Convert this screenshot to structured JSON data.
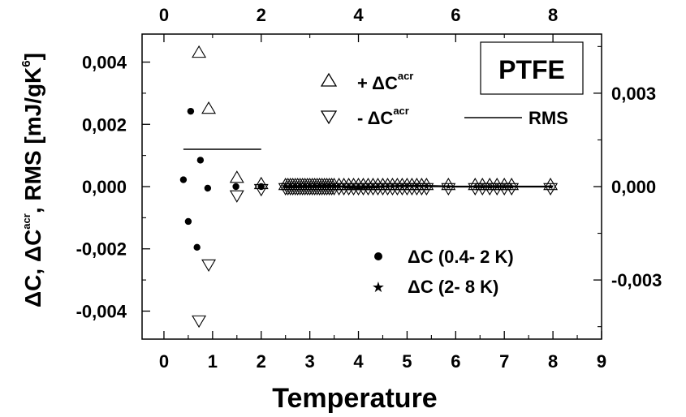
{
  "chart_data": {
    "type": "scatter",
    "xlabel": "Temperature",
    "ylabel_left_parts": [
      "ΔC, ΔC",
      "acr",
      ", RMS [mJ/gK",
      "6",
      "]"
    ],
    "x_bottom": {
      "range": [
        -0.45,
        9
      ],
      "ticks": [
        0,
        1,
        2,
        3,
        4,
        5,
        6,
        7,
        8,
        9
      ],
      "minor_step": 0.5
    },
    "x_top": {
      "range": [
        -0.45,
        9
      ],
      "ticks": [
        0,
        2,
        4,
        6,
        8
      ],
      "tick_labels": [
        "0",
        "2",
        "4",
        "6",
        "8"
      ]
    },
    "y_left": {
      "range": [
        -0.0049,
        0.0049
      ],
      "ticks": [
        -0.004,
        -0.002,
        0,
        0.002,
        0.004
      ],
      "tick_labels": [
        "-0,004",
        "-0,002",
        "0,000",
        "0,002",
        "0,004"
      ],
      "minor_step": 0.001
    },
    "y_right": {
      "ticks": [
        -0.003,
        0,
        0.003
      ],
      "tick_labels": [
        "-0,003",
        "0,000",
        "0,003"
      ],
      "scale_factor": 1.0,
      "minor_step": 0.0015
    },
    "annotation": "PTFE",
    "legend": {
      "plus": {
        "prefix": "+ ΔC",
        "sup": "acr"
      },
      "minus": {
        "prefix": "- ΔC",
        "sup": "acr"
      },
      "rms": "RMS",
      "dc1": "ΔC (0.4- 2 K)",
      "dc2": "ΔC (2- 8 K)"
    },
    "series": [
      {
        "name": "+ ΔC^acr",
        "marker": "triangle-up",
        "points": [
          [
            0.72,
            0.0043
          ],
          [
            0.92,
            0.0025
          ],
          [
            1.5,
            0.00028
          ],
          [
            2.0,
            8e-05
          ],
          [
            2.5,
            5e-05
          ],
          [
            2.55,
            5e-05
          ],
          [
            2.6,
            5e-05
          ],
          [
            2.65,
            5e-05
          ],
          [
            2.7,
            5e-05
          ],
          [
            2.75,
            5e-05
          ],
          [
            2.8,
            5e-05
          ],
          [
            2.85,
            5e-05
          ],
          [
            2.9,
            5e-05
          ],
          [
            2.95,
            5e-05
          ],
          [
            3.0,
            5e-05
          ],
          [
            3.05,
            5e-05
          ],
          [
            3.1,
            5e-05
          ],
          [
            3.15,
            5e-05
          ],
          [
            3.2,
            5e-05
          ],
          [
            3.25,
            5e-05
          ],
          [
            3.3,
            5e-05
          ],
          [
            3.35,
            5e-05
          ],
          [
            3.4,
            5e-05
          ],
          [
            3.45,
            5e-05
          ],
          [
            3.5,
            5e-05
          ],
          [
            3.6,
            5e-05
          ],
          [
            3.7,
            5e-05
          ],
          [
            3.8,
            5e-05
          ],
          [
            3.9,
            5e-05
          ],
          [
            4.0,
            5e-05
          ],
          [
            4.1,
            5e-05
          ],
          [
            4.2,
            5e-05
          ],
          [
            4.3,
            5e-05
          ],
          [
            4.4,
            5e-05
          ],
          [
            4.5,
            5e-05
          ],
          [
            4.6,
            5e-05
          ],
          [
            4.7,
            5e-05
          ],
          [
            4.8,
            5e-05
          ],
          [
            4.9,
            5e-05
          ],
          [
            5.0,
            5e-05
          ],
          [
            5.1,
            5e-05
          ],
          [
            5.2,
            5e-05
          ],
          [
            5.3,
            5e-05
          ],
          [
            5.4,
            5e-05
          ],
          [
            5.85,
            5e-05
          ],
          [
            6.4,
            5e-05
          ],
          [
            6.55,
            5e-05
          ],
          [
            6.7,
            5e-05
          ],
          [
            6.85,
            5e-05
          ],
          [
            7.0,
            5e-05
          ],
          [
            7.15,
            5e-05
          ],
          [
            7.95,
            5e-05
          ]
        ]
      },
      {
        "name": "- ΔC^acr",
        "marker": "triangle-down",
        "points": [
          [
            0.72,
            -0.0043
          ],
          [
            0.92,
            -0.0025
          ],
          [
            1.5,
            -0.00028
          ],
          [
            2.0,
            -8e-05
          ],
          [
            2.5,
            -5e-05
          ],
          [
            2.55,
            -5e-05
          ],
          [
            2.6,
            -5e-05
          ],
          [
            2.65,
            -5e-05
          ],
          [
            2.7,
            -5e-05
          ],
          [
            2.75,
            -5e-05
          ],
          [
            2.8,
            -5e-05
          ],
          [
            2.85,
            -5e-05
          ],
          [
            2.9,
            -5e-05
          ],
          [
            2.95,
            -5e-05
          ],
          [
            3.0,
            -5e-05
          ],
          [
            3.05,
            -5e-05
          ],
          [
            3.1,
            -5e-05
          ],
          [
            3.15,
            -5e-05
          ],
          [
            3.2,
            -5e-05
          ],
          [
            3.25,
            -5e-05
          ],
          [
            3.3,
            -5e-05
          ],
          [
            3.35,
            -5e-05
          ],
          [
            3.4,
            -5e-05
          ],
          [
            3.45,
            -5e-05
          ],
          [
            3.5,
            -5e-05
          ],
          [
            3.6,
            -5e-05
          ],
          [
            3.7,
            -5e-05
          ],
          [
            3.8,
            -5e-05
          ],
          [
            3.9,
            -5e-05
          ],
          [
            4.0,
            -5e-05
          ],
          [
            4.1,
            -5e-05
          ],
          [
            4.2,
            -5e-05
          ],
          [
            4.3,
            -5e-05
          ],
          [
            4.4,
            -5e-05
          ],
          [
            4.5,
            -5e-05
          ],
          [
            4.6,
            -5e-05
          ],
          [
            4.7,
            -5e-05
          ],
          [
            4.8,
            -5e-05
          ],
          [
            4.9,
            -5e-05
          ],
          [
            5.0,
            -5e-05
          ],
          [
            5.1,
            -5e-05
          ],
          [
            5.2,
            -5e-05
          ],
          [
            5.3,
            -5e-05
          ],
          [
            5.4,
            -5e-05
          ],
          [
            5.85,
            -5e-05
          ],
          [
            6.4,
            -5e-05
          ],
          [
            6.55,
            -5e-05
          ],
          [
            6.7,
            -5e-05
          ],
          [
            6.85,
            -5e-05
          ],
          [
            7.0,
            -5e-05
          ],
          [
            7.15,
            -5e-05
          ],
          [
            7.95,
            -5e-05
          ]
        ]
      },
      {
        "name": "ΔC (0.4- 2 K)",
        "marker": "dot",
        "points": [
          [
            0.4,
            0.00022
          ],
          [
            0.5,
            -0.00112
          ],
          [
            0.55,
            0.00242
          ],
          [
            0.68,
            -0.00195
          ],
          [
            0.75,
            0.00085
          ],
          [
            0.9,
            -5e-05
          ],
          [
            1.48,
            0.0
          ],
          [
            2.0,
            0.0
          ]
        ]
      },
      {
        "name": "ΔC (2- 8 K)",
        "marker": "star",
        "points": [
          [
            2.5,
            0.0
          ],
          [
            2.6,
            0.0
          ],
          [
            2.7,
            0.0
          ],
          [
            2.8,
            0.0
          ],
          [
            2.9,
            0.0
          ],
          [
            3.0,
            0.0
          ],
          [
            3.1,
            0.0
          ],
          [
            3.2,
            0.0
          ],
          [
            3.3,
            0.0
          ],
          [
            3.4,
            0.0
          ],
          [
            3.5,
            0.0
          ],
          [
            3.6,
            0.0
          ],
          [
            3.7,
            0.0
          ],
          [
            3.8,
            0.0
          ],
          [
            3.9,
            0.0
          ],
          [
            4.0,
            0.0
          ],
          [
            4.1,
            0.0
          ],
          [
            4.2,
            0.0
          ],
          [
            4.3,
            0.0
          ],
          [
            4.4,
            0.0
          ],
          [
            4.5,
            0.0
          ],
          [
            4.6,
            0.0
          ],
          [
            4.7,
            0.0
          ],
          [
            4.8,
            0.0
          ],
          [
            4.9,
            0.0
          ],
          [
            5.0,
            0.0
          ],
          [
            5.2,
            0.0
          ],
          [
            5.4,
            0.0
          ],
          [
            5.85,
            0.0
          ],
          [
            6.4,
            0.0
          ],
          [
            6.55,
            0.0
          ],
          [
            6.7,
            0.0
          ],
          [
            6.85,
            0.0
          ],
          [
            7.0,
            0.0
          ],
          [
            7.15,
            0.0
          ],
          [
            7.95,
            0.0
          ]
        ]
      }
    ],
    "rms_segments": [
      {
        "x": [
          0.4,
          2.0
        ],
        "y": [
          0.0012,
          0.0012
        ]
      },
      {
        "x": [
          2.5,
          8.0
        ],
        "y": [
          0.0,
          0.0
        ]
      }
    ],
    "dc2_line": {
      "x": [
        2.5,
        2.8,
        3.0,
        3.3,
        3.5,
        3.8,
        4.0,
        4.3,
        4.6,
        5.0,
        5.5,
        6.0,
        6.5,
        7.0,
        8.0
      ],
      "y": [
        -3e-05,
        -2e-05,
        1e-05,
        4e-05,
        3e-05,
        -4e-05,
        -5e-05,
        -3e-05,
        1e-05,
        3e-05,
        2e-05,
        0.0,
        0.0,
        0.0,
        0.0
      ]
    },
    "grid": false
  }
}
